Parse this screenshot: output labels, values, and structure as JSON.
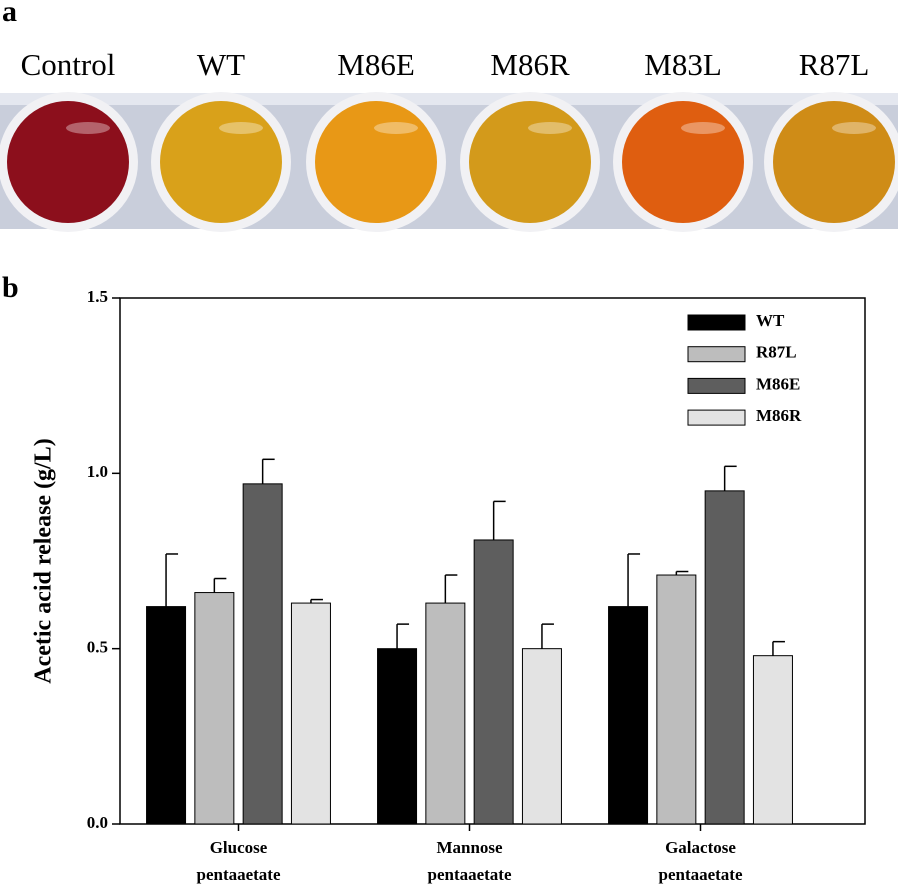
{
  "panel_a": {
    "letter": "a",
    "labels": [
      "Control",
      "WT",
      "M86E",
      "M86R",
      "M83L",
      "R87L"
    ]
  },
  "chart_data": {
    "type": "bar",
    "letter": "b",
    "ylabel": "Acetic acid release (g/L)",
    "categories": [
      "Glucose pentaaetate",
      "Mannose pentaaetate",
      "Galactose pentaaetate"
    ],
    "series": [
      {
        "name": "WT",
        "color": "#000000",
        "values": [
          0.62,
          0.5,
          0.62
        ],
        "errors": [
          0.15,
          0.07,
          0.15
        ]
      },
      {
        "name": "R87L",
        "color": "#bdbdbd",
        "values": [
          0.66,
          0.63,
          0.71
        ],
        "errors": [
          0.04,
          0.08,
          0.01
        ]
      },
      {
        "name": "M86E",
        "color": "#5e5e5e",
        "values": [
          0.97,
          0.81,
          0.95
        ],
        "errors": [
          0.07,
          0.11,
          0.07
        ]
      },
      {
        "name": "M86R",
        "color": "#e3e3e3",
        "values": [
          0.63,
          0.5,
          0.48
        ],
        "errors": [
          0.01,
          0.07,
          0.04
        ]
      }
    ],
    "ylim": [
      0,
      1.5
    ],
    "yticks": [
      {
        "value": 0,
        "label": "0.0"
      },
      {
        "value": 0.5,
        "label": "0.5"
      },
      {
        "value": 1,
        "label": "1.0"
      },
      {
        "value": 1.5,
        "label": "1.5"
      }
    ],
    "legend": "upper right"
  }
}
